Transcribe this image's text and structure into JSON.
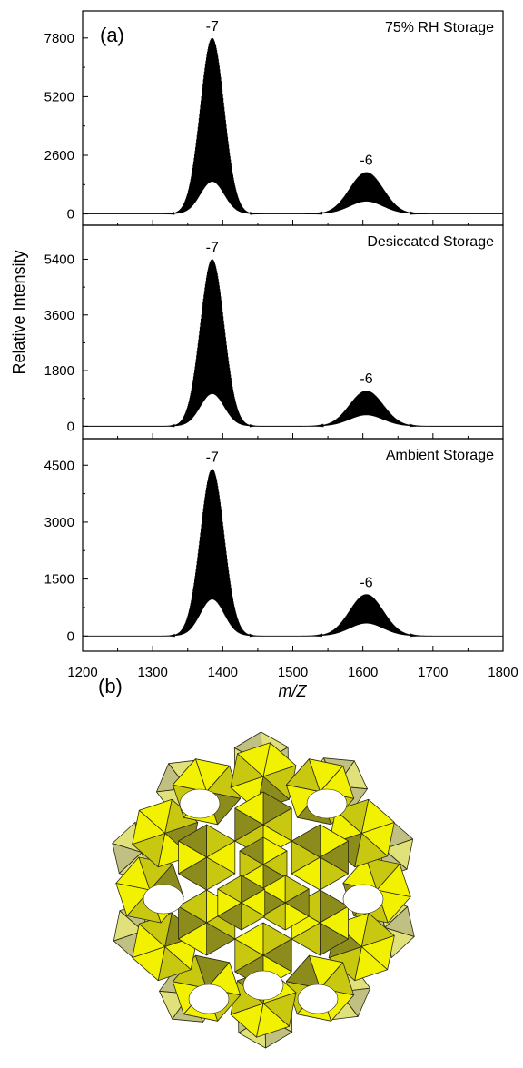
{
  "chart_data": {
    "type": "line",
    "panel_label": "(a)",
    "xlabel": "m/Z",
    "ylabel": "Relative Intensity",
    "xlim": [
      1200,
      1800
    ],
    "x_ticks": [
      "1200",
      "1300",
      "1400",
      "1500",
      "1600",
      "1700",
      "1800"
    ],
    "panels": [
      {
        "name": "75% RH Storage",
        "ylim": [
          -500,
          9000
        ],
        "y_ticks": [
          0,
          2600,
          5200,
          7800
        ],
        "y_tick_labels": [
          "0",
          "2600",
          "5200",
          "7800"
        ],
        "peaks": [
          {
            "label": "-7",
            "center": 1385,
            "max": 7800,
            "envelope": 2600,
            "width": 17
          },
          {
            "label": "-6",
            "center": 1605,
            "max": 1850,
            "envelope": 1000,
            "width": 24
          }
        ]
      },
      {
        "name": "Desiccated Storage",
        "ylim": [
          -400,
          6500
        ],
        "y_ticks": [
          0,
          1800,
          3600,
          5400
        ],
        "y_tick_labels": [
          "0",
          "1800",
          "3600",
          "5400"
        ],
        "peaks": [
          {
            "label": "-7",
            "center": 1385,
            "max": 5400,
            "envelope": 1900,
            "width": 17
          },
          {
            "label": "-6",
            "center": 1605,
            "max": 1150,
            "envelope": 650,
            "width": 24
          }
        ]
      },
      {
        "name": "Ambient Storage",
        "ylim": [
          -400,
          5200
        ],
        "y_ticks": [
          0,
          1500,
          3000,
          4500
        ],
        "y_tick_labels": [
          "0",
          "1500",
          "3000",
          "4500"
        ],
        "peaks": [
          {
            "label": "-7",
            "center": 1385,
            "max": 4400,
            "envelope": 1750,
            "width": 17
          },
          {
            "label": "-6",
            "center": 1605,
            "max": 1100,
            "envelope": 600,
            "width": 24
          }
        ]
      }
    ]
  },
  "structure_panel": {
    "label": "(b)",
    "colors": {
      "face_light": "#f2f200",
      "face_mid": "#c8c810",
      "face_dark": "#8c8c1c",
      "edge": "#2a2a10"
    }
  }
}
